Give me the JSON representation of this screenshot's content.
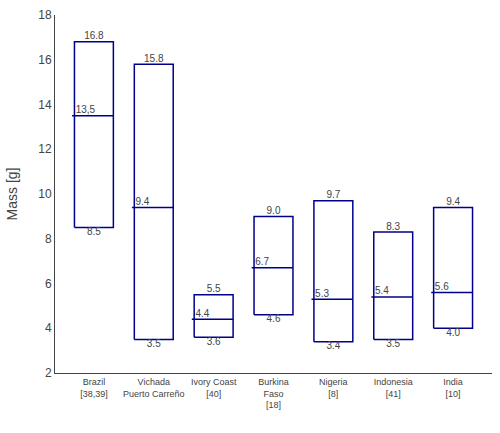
{
  "chart_data": {
    "type": "range",
    "categories": [
      "Brazil\n[38,39]",
      "Vichada\nPuerto Carreño",
      "Ivory Coast\n[40]",
      "Burkina\nFaso\n[18]",
      "Nigeria\n[8]",
      "Indonesia\n[41]",
      "India\n[10]"
    ],
    "low": [
      8.5,
      3.5,
      3.6,
      4.6,
      3.4,
      3.5,
      4.0
    ],
    "high": [
      16.8,
      15.8,
      5.5,
      9.0,
      9.7,
      8.3,
      9.4
    ],
    "values": [
      13.5,
      9.4,
      4.4,
      6.7,
      5.3,
      5.4,
      5.6
    ],
    "low_labels": [
      "8.5",
      "3.5",
      "3.6",
      "4.6",
      "3.4",
      "3.5",
      "4.0"
    ],
    "high_labels": [
      "16.8",
      "15.8",
      "5.5",
      "9.0",
      "9.7",
      "8.3",
      "9.4"
    ],
    "value_labels": [
      "13,5",
      "9.4",
      "4.4",
      "6.7",
      "5.3",
      "5.4",
      "5.6"
    ],
    "data_labels": true,
    "color": "#00008B",
    "ylabel": "Mass [g]",
    "ylim": [
      2,
      18
    ],
    "yticks": [
      2,
      4,
      6,
      8,
      10,
      12,
      14,
      16,
      18
    ],
    "grid": false
  }
}
